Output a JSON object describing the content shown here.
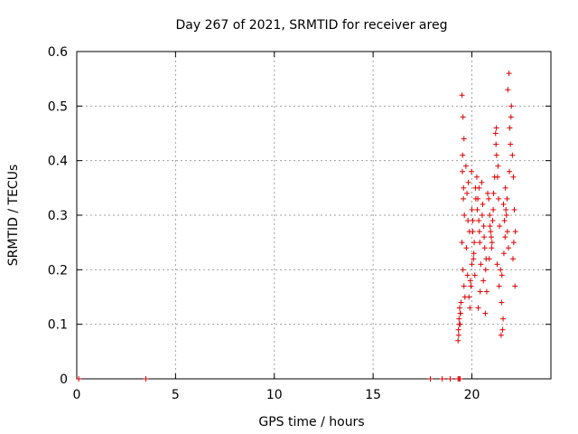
{
  "chart_data": {
    "type": "scatter",
    "title": "Day 267 of 2021, SRMTID for receiver areg",
    "xlabel": "GPS time / hours",
    "ylabel": "SRMTID / TECUs",
    "xlim": [
      0,
      24
    ],
    "ylim": [
      0,
      0.6
    ],
    "xticks": [
      0,
      5,
      10,
      15,
      20
    ],
    "xtick_labels": [
      "0",
      "5",
      "10",
      "15",
      "20"
    ],
    "yticks": [
      0,
      0.1,
      0.2,
      0.3,
      0.4,
      0.5,
      0.6
    ],
    "ytick_labels": [
      "0",
      "0.1",
      "0.2",
      "0.3",
      "0.4",
      "0.5",
      "0.6"
    ],
    "grid": true,
    "marker": "+",
    "color": "#dd0000",
    "series": [
      {
        "name": "areg",
        "x": [
          0.1,
          3.5,
          17.9,
          18.5,
          18.9,
          19.3,
          19.35,
          19.4,
          19.3,
          19.32,
          19.35,
          19.38,
          19.4,
          19.42,
          19.45,
          19.33,
          19.37,
          19.41,
          19.5,
          19.55,
          19.6,
          19.52,
          19.58,
          19.62,
          19.5,
          19.55,
          19.6,
          19.65,
          19.53,
          19.57,
          19.7,
          19.75,
          19.8,
          19.72,
          19.78,
          19.85,
          19.9,
          19.95,
          20.0,
          19.82,
          19.88,
          19.92,
          20.0,
          20.05,
          20.1,
          20.15,
          20.2,
          20.05,
          20.12,
          20.18,
          19.98,
          20.08,
          20.25,
          20.3,
          20.35,
          20.4,
          20.45,
          20.28,
          20.38,
          20.42,
          20.32,
          20.36,
          20.5,
          20.55,
          20.6,
          20.65,
          20.7,
          20.75,
          20.8,
          20.52,
          20.62,
          20.72,
          20.58,
          20.68,
          20.85,
          20.9,
          20.95,
          21.0,
          21.05,
          21.1,
          21.15,
          20.88,
          20.98,
          21.08,
          20.92,
          21.02,
          21.2,
          21.25,
          21.3,
          21.35,
          21.4,
          21.22,
          21.32,
          21.28,
          21.38,
          21.24,
          21.45,
          21.5,
          21.55,
          21.6,
          21.65,
          21.7,
          21.75,
          21.8,
          21.85,
          21.9,
          21.95,
          22.0,
          21.48,
          21.58,
          21.68,
          21.78,
          21.88,
          21.98,
          21.52,
          21.62,
          21.72,
          21.82,
          21.92,
          22.05,
          22.1,
          22.15,
          22.2,
          22.08,
          22.18,
          22.12
        ],
        "y": [
          0,
          0,
          0,
          0,
          0,
          0,
          0,
          0,
          0.07,
          0.09,
          0.11,
          0.13,
          0.1,
          0.12,
          0.14,
          0.08,
          0.1,
          0.12,
          0.52,
          0.48,
          0.44,
          0.38,
          0.35,
          0.3,
          0.25,
          0.2,
          0.17,
          0.15,
          0.41,
          0.33,
          0.39,
          0.34,
          0.29,
          0.24,
          0.19,
          0.15,
          0.13,
          0.17,
          0.21,
          0.36,
          0.27,
          0.18,
          0.31,
          0.27,
          0.23,
          0.19,
          0.33,
          0.29,
          0.25,
          0.35,
          0.38,
          0.22,
          0.37,
          0.33,
          0.29,
          0.25,
          0.21,
          0.31,
          0.27,
          0.16,
          0.13,
          0.35,
          0.36,
          0.32,
          0.28,
          0.24,
          0.2,
          0.16,
          0.34,
          0.3,
          0.26,
          0.22,
          0.18,
          0.12,
          0.33,
          0.3,
          0.27,
          0.24,
          0.29,
          0.34,
          0.37,
          0.22,
          0.26,
          0.31,
          0.28,
          0.25,
          0.45,
          0.41,
          0.37,
          0.33,
          0.28,
          0.43,
          0.39,
          0.21,
          0.17,
          0.46,
          0.2,
          0.14,
          0.09,
          0.32,
          0.29,
          0.35,
          0.3,
          0.27,
          0.24,
          0.38,
          0.43,
          0.5,
          0.08,
          0.11,
          0.26,
          0.33,
          0.56,
          0.48,
          0.19,
          0.23,
          0.31,
          0.53,
          0.46,
          0.41,
          0.37,
          0.31,
          0.27,
          0.22,
          0.17,
          0.25
        ]
      }
    ]
  }
}
